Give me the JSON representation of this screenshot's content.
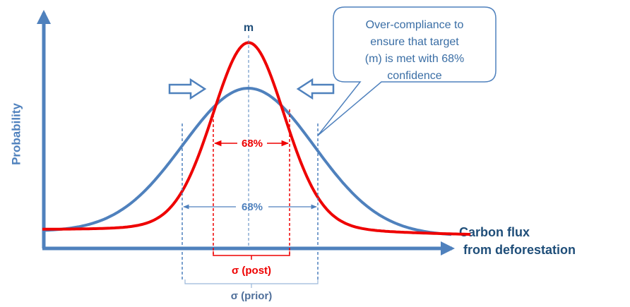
{
  "diagram": {
    "axis_labels": {
      "y": "Probability",
      "x": [
        "Carbon flux",
        "from deforestation"
      ]
    },
    "mean_label": "m",
    "callout": [
      "Over-compliance to",
      "ensure  that target",
      "(m) is met with 68%",
      "confidence"
    ],
    "posterior_interval": "68%",
    "prior_interval": "68%",
    "sigma_post": "σ (post)",
    "sigma_prior": "σ (prior)"
  }
}
